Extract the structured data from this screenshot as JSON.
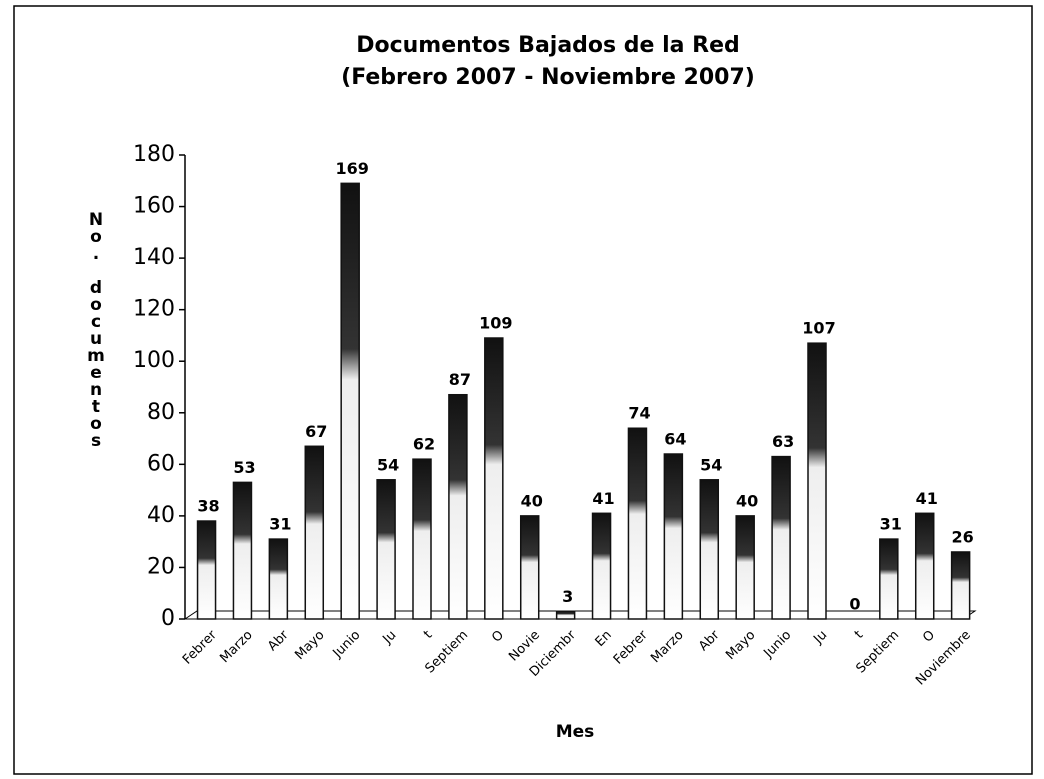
{
  "chart_data": {
    "type": "bar",
    "title": "Documentos Bajados de la Red",
    "subtitle": "(Febrero 2007 - Noviembre 2007)",
    "x_label": "Mes",
    "y_label": "No. documentos",
    "categories": [
      "Febrer",
      "Marzo",
      "Abr",
      "Mayo",
      "Junio",
      "Ju",
      "t",
      "Septiem",
      "O",
      "Novie",
      "Diciembr",
      "En",
      "Febrer",
      "Marzo",
      "Abr",
      "Mayo",
      "Junio",
      "Ju",
      "t",
      "Septiem",
      "O",
      "Noviembre"
    ],
    "values": [
      38,
      53,
      31,
      67,
      169,
      54,
      62,
      87,
      109,
      40,
      3,
      41,
      74,
      64,
      54,
      40,
      63,
      107,
      0,
      31,
      41,
      26
    ],
    "color": "#111111",
    "ylim": [
      0,
      180
    ],
    "yticks": [
      0,
      20,
      40,
      60,
      80,
      100,
      120,
      140,
      160,
      180
    ],
    "grid": false
  }
}
